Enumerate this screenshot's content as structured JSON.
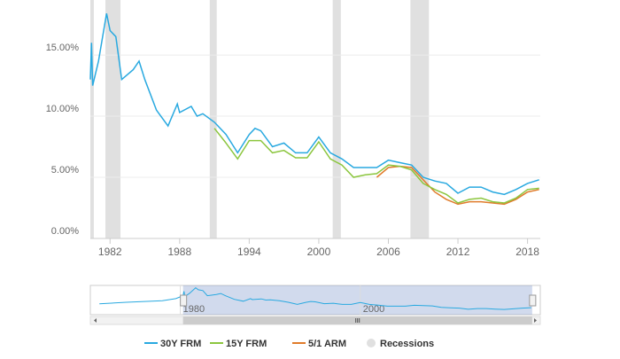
{
  "chart_data": {
    "type": "line",
    "xlim": [
      1980.3,
      2019.1
    ],
    "xticks": [
      1982,
      1988,
      1994,
      2000,
      2006,
      2012,
      2018
    ],
    "ylim": [
      0,
      19.5
    ],
    "yticks": [
      {
        "value": 0,
        "label": "0.00%"
      },
      {
        "value": 5,
        "label": "5.00%"
      },
      {
        "value": 10,
        "label": "10.00%"
      },
      {
        "value": 15,
        "label": "15.00%"
      }
    ],
    "grid": true,
    "series": [
      {
        "name": "30Y FRM",
        "color": "#29a9e0",
        "x": [
          1980.3,
          1980.4,
          1980.5,
          1981,
          1981.7,
          1982,
          1982.5,
          1983,
          1984,
          1984.5,
          1985,
          1986,
          1987,
          1987.8,
          1988,
          1989,
          1989.5,
          1990,
          1991,
          1992,
          1993,
          1994,
          1994.5,
          1995,
          1996,
          1997,
          1998,
          1999,
          2000,
          2001,
          2002,
          2003,
          2004,
          2005,
          2006,
          2007,
          2008,
          2009,
          2010,
          2011,
          2012,
          2013,
          2014,
          2015,
          2016,
          2017,
          2018,
          2019
        ],
        "values": [
          13,
          16,
          12.5,
          14.5,
          18.4,
          17,
          16.5,
          13,
          13.8,
          14.5,
          13,
          10.5,
          9.2,
          11,
          10.3,
          10.8,
          10,
          10.2,
          9.5,
          8.5,
          7,
          8.5,
          9,
          8.8,
          7.5,
          7.8,
          7,
          7,
          8.3,
          7,
          6.5,
          5.8,
          5.8,
          5.8,
          6.4,
          6.2,
          6,
          5,
          4.7,
          4.5,
          3.7,
          4.2,
          4.2,
          3.8,
          3.6,
          4,
          4.5,
          4.8
        ]
      },
      {
        "name": "15Y FRM",
        "color": "#8cc63f",
        "x": [
          1991,
          1992,
          1993,
          1994,
          1995,
          1996,
          1997,
          1998,
          1999,
          2000,
          2001,
          2002,
          2003,
          2004,
          2005,
          2006,
          2007,
          2008,
          2009,
          2010,
          2011,
          2012,
          2013,
          2014,
          2015,
          2016,
          2017,
          2018,
          2019
        ],
        "values": [
          9,
          7.8,
          6.5,
          8,
          8,
          7,
          7.2,
          6.6,
          6.6,
          7.9,
          6.5,
          6,
          5,
          5.2,
          5.3,
          6,
          5.9,
          5.6,
          4.5,
          4,
          3.6,
          2.9,
          3.2,
          3.3,
          3,
          2.9,
          3.3,
          4,
          4.1
        ]
      },
      {
        "name": "5/1 ARM",
        "color": "#e07b2a",
        "x": [
          2005,
          2006,
          2007,
          2008,
          2009,
          2010,
          2011,
          2012,
          2013,
          2014,
          2015,
          2016,
          2017,
          2018,
          2019
        ],
        "values": [
          5,
          5.8,
          5.9,
          5.8,
          4.8,
          3.8,
          3.2,
          2.8,
          3,
          3,
          2.9,
          2.8,
          3.2,
          3.8,
          4
        ]
      }
    ],
    "recessions": {
      "name": "Recessions",
      "color": "#e0e0e0",
      "bands": [
        [
          1980.3,
          1980.6
        ],
        [
          1981.6,
          1982.9
        ],
        [
          1990.6,
          1991.2
        ],
        [
          2001.2,
          2001.9
        ],
        [
          2007.9,
          2009.5
        ]
      ]
    },
    "navigator": {
      "xlim": [
        1970,
        2020
      ],
      "xticks": [
        1980,
        2000
      ],
      "ylim": [
        0,
        20
      ],
      "x": [
        1971,
        1974,
        1976,
        1978,
        1979.5,
        1980.3
      ],
      "values": [
        7.4,
        8.5,
        9,
        9.5,
        11,
        13
      ]
    }
  }
}
